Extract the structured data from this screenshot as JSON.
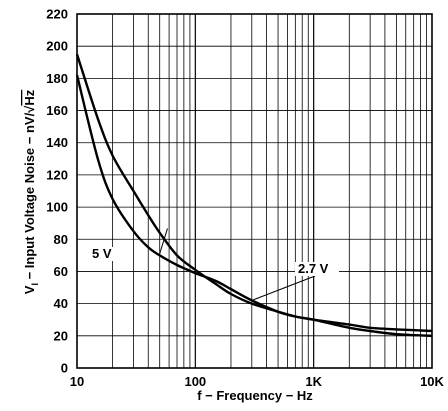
{
  "chart_data": {
    "type": "line",
    "title": "",
    "xlabel": "f − Frequency − Hz",
    "ylabel": {
      "prefix": "V",
      "subscript": "I",
      "main": " − Input Voltage Noise − nV/",
      "radical": "√",
      "radicand": "Hz"
    },
    "x_scale": "log",
    "xlim": [
      10,
      10000
    ],
    "ylim": [
      0,
      220
    ],
    "grid": true,
    "x_ticks": [
      {
        "value": 10,
        "label": "10"
      },
      {
        "value": 100,
        "label": "100"
      },
      {
        "value": 1000,
        "label": "1K"
      },
      {
        "value": 10000,
        "label": "10K"
      }
    ],
    "y_ticks": [
      0,
      20,
      40,
      60,
      80,
      100,
      120,
      140,
      160,
      180,
      200,
      220
    ],
    "series": [
      {
        "name": "5 V",
        "x": [
          10,
          15,
          20,
          30,
          40,
          50,
          70,
          100,
          150,
          200,
          300,
          500,
          700,
          1000,
          2000,
          3000,
          5000,
          10000
        ],
        "y": [
          182,
          130,
          105,
          85,
          75,
          70,
          64,
          59,
          54,
          49,
          42,
          35,
          32,
          30,
          27,
          25,
          24,
          23
        ]
      },
      {
        "name": "2.7 V",
        "x": [
          10,
          15,
          20,
          30,
          40,
          50,
          70,
          100,
          150,
          200,
          300,
          500,
          700,
          1000,
          2000,
          3000,
          5000,
          10000
        ],
        "y": [
          195,
          155,
          132,
          110,
          95,
          84,
          70,
          61,
          52,
          46,
          40,
          35,
          32,
          30,
          25,
          23,
          21,
          20
        ]
      }
    ],
    "annotations": [
      {
        "series": "5 V",
        "text": "5 V"
      },
      {
        "series": "2.7 V",
        "text": "2.7 V"
      }
    ]
  }
}
